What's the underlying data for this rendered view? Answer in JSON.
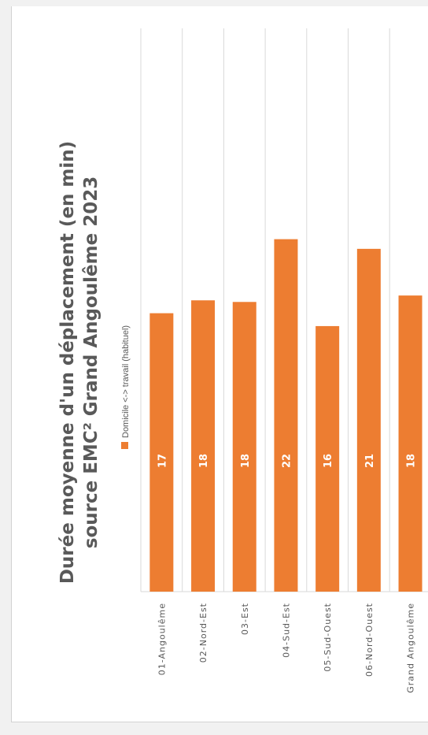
{
  "chart_data": {
    "type": "bar",
    "orientation": "vertical-rotated-90",
    "title": "Durée moyenne d'un déplacement (en min) source EMC² Grand Angoulême 2023",
    "title_lines": [
      "Durée moyenne d'un déplacement (en min)",
      "source EMC² Grand Angoulême 2023"
    ],
    "categories": [
      "01-Angoulême",
      "02-Nord-Est",
      "03-Est",
      "04-Sud-Est",
      "05-Sud-Ouest",
      "06-Nord-Ouest",
      "Grand Angoulême"
    ],
    "series": [
      {
        "name": "Domicile <-> travail (habituel)",
        "color": "#ed7d31",
        "values": [
          17,
          18,
          18,
          22,
          16,
          21,
          18
        ],
        "raw_values": [
          17.3,
          18.1,
          18.0,
          21.9,
          16.5,
          21.3,
          18.4
        ],
        "labels": [
          "17",
          "18",
          "18",
          "22",
          "16",
          "21",
          "18"
        ]
      }
    ],
    "ylim": [
      0,
      35
    ],
    "grid": true,
    "legend_position": "top"
  }
}
